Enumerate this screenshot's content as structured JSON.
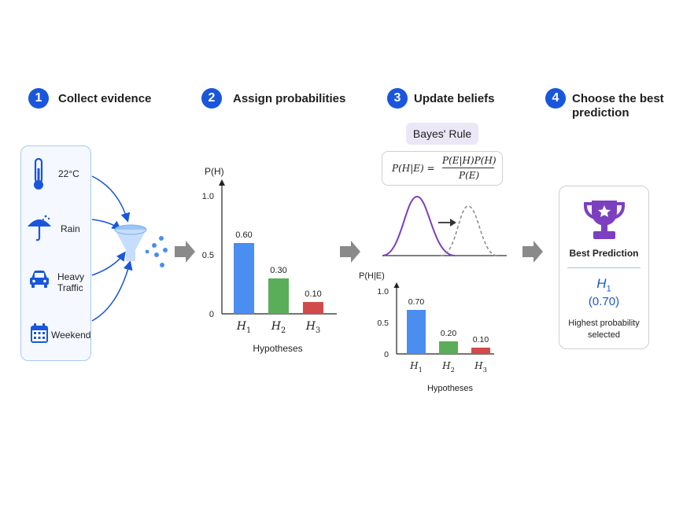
{
  "steps": [
    {
      "number": "1",
      "title": "Collect evidence"
    },
    {
      "number": "2",
      "title": "Assign probabilities"
    },
    {
      "number": "3",
      "title": "Update beliefs"
    },
    {
      "number": "4",
      "title_line1": "Choose the best",
      "title_line2": "prediction"
    }
  ],
  "evidence": [
    {
      "icon": "thermometer-icon",
      "label": "22°C"
    },
    {
      "icon": "umbrella-icon",
      "label": "Rain"
    },
    {
      "icon": "car-icon",
      "label_line1": "Heavy",
      "label_line2": "Traffic"
    },
    {
      "icon": "calendar-icon",
      "label": "Weekend"
    }
  ],
  "bayes": {
    "badge": "Bayes' Rule",
    "lhs": "P(H|E) =",
    "numerator": "P(E|H)P(H)",
    "denominator": "P(E)"
  },
  "best": {
    "icon": "trophy-icon",
    "title": "Best Prediction",
    "hyp_base": "H",
    "hyp_sub": "1",
    "value": "(0.70)",
    "caption_line1": "Highest probability",
    "caption_line2": "selected"
  },
  "colors": {
    "accent_blue": "#1a56db",
    "bar_blue": "#4a8ef0",
    "bar_green": "#5aae5a",
    "bar_red": "#d24b4b",
    "purple": "#7b3fbf"
  },
  "chart_data": [
    {
      "type": "bar",
      "ylabel": "P(H)",
      "xlabel": "Hypotheses",
      "ylim": [
        0,
        1.0
      ],
      "yticks": [
        "0",
        "0.5",
        "1.0"
      ],
      "categories": [
        {
          "base": "H",
          "sub": "1"
        },
        {
          "base": "H",
          "sub": "2"
        },
        {
          "base": "H",
          "sub": "3"
        }
      ],
      "values": [
        0.6,
        0.3,
        0.1
      ],
      "value_labels": [
        "0.60",
        "0.30",
        "0.10"
      ],
      "colors": [
        "#4a8ef0",
        "#5aae5a",
        "#d24b4b"
      ]
    },
    {
      "type": "bar",
      "ylabel": "P(H|E)",
      "xlabel": "Hypotheses",
      "ylim": [
        0,
        1.0
      ],
      "yticks": [
        "0",
        "0.5",
        "1.0"
      ],
      "categories": [
        {
          "base": "H",
          "sub": "1"
        },
        {
          "base": "H",
          "sub": "2"
        },
        {
          "base": "H",
          "sub": "3"
        }
      ],
      "values": [
        0.7,
        0.2,
        0.1
      ],
      "value_labels": [
        "0.70",
        "0.20",
        "0.10"
      ],
      "colors": [
        "#4a8ef0",
        "#5aae5a",
        "#d24b4b"
      ]
    }
  ]
}
